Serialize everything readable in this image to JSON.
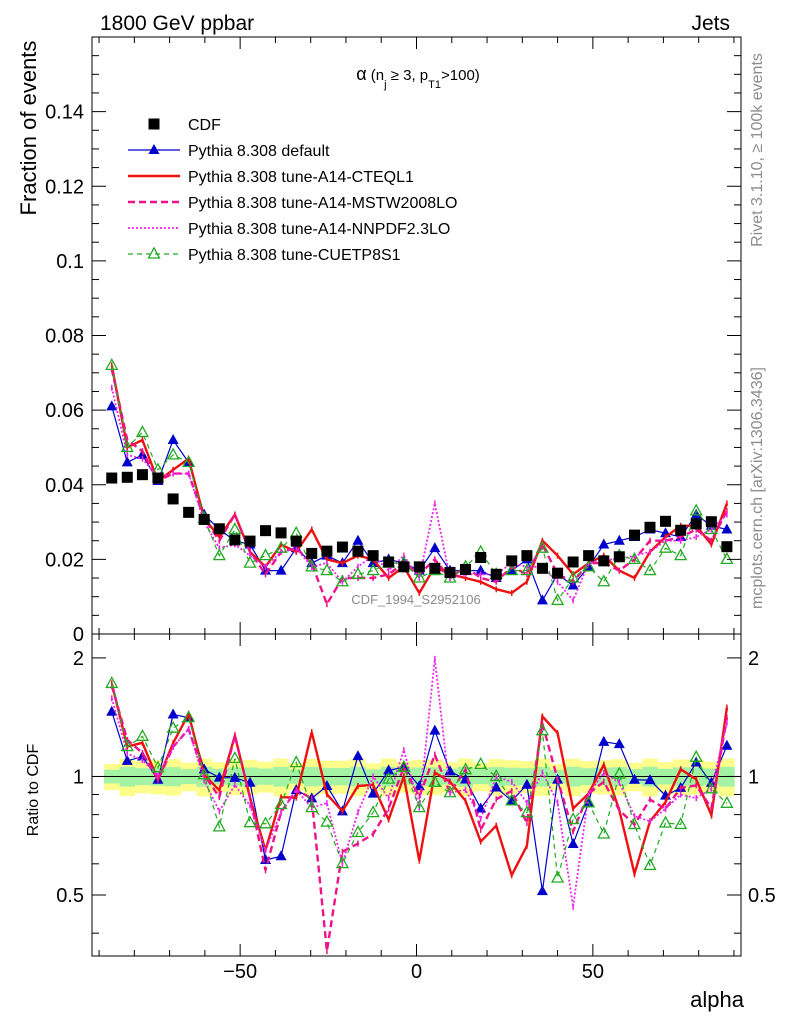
{
  "header": {
    "left": "1800 GeV ppbar",
    "right": "Jets"
  },
  "side_labels": {
    "rivet": "Rivet 3.1.10, ≥ 100k events",
    "mcplots": "mcplots.cern.ch [arXiv:1306.3436]"
  },
  "watermark": "CDF_1994_S2952106",
  "chart_data": {
    "type": "line",
    "title": {
      "alpha": "α",
      "open": " (n",
      "n_sub": "j",
      "mid": " ≥ 3, p",
      "pt_sub": "T1",
      "close": ">100)"
    },
    "xlabel": "alpha",
    "ylabel": "Fraction of events",
    "ratio_ylabel": "Ratio to CDF",
    "xlim": [
      -92,
      92
    ],
    "ylim": [
      0,
      0.16
    ],
    "ratio_ylim": [
      0.35,
      2.3
    ],
    "x_major_ticks": [
      -50,
      0,
      50
    ],
    "x_tick_labels": [
      "−50",
      "0",
      "50"
    ],
    "y_major_ticks": [
      0,
      0.02,
      0.04,
      0.06,
      0.08,
      0.1,
      0.12,
      0.14
    ],
    "y_tick_labels": [
      "0",
      "0.02",
      "0.04",
      "0.06",
      "0.08",
      "0.1",
      "0.12",
      "0.14"
    ],
    "ratio_major_ticks": [
      0.5,
      1,
      2
    ],
    "ratio_tick_labels": [
      "0.5",
      "1",
      "2"
    ],
    "x": [
      -86.4,
      -82.0,
      -77.7,
      -73.3,
      -69.0,
      -64.6,
      -60.2,
      -55.9,
      -51.5,
      -47.2,
      -42.8,
      -38.4,
      -34.1,
      -29.7,
      -25.4,
      -21.0,
      -16.6,
      -12.3,
      -7.9,
      -3.6,
      0.8,
      5.2,
      9.5,
      13.9,
      18.2,
      22.6,
      27.0,
      31.3,
      35.7,
      40.0,
      44.4,
      48.8,
      53.1,
      57.5,
      61.8,
      66.2,
      70.6,
      74.9,
      79.3,
      83.6,
      88.0
    ],
    "series": [
      {
        "name": "CDF",
        "color": "#000000",
        "values": [
          0.0418,
          0.042,
          0.0427,
          0.0418,
          0.0362,
          0.0326,
          0.0307,
          0.0282,
          0.0252,
          0.0249,
          0.0277,
          0.0271,
          0.0249,
          0.0216,
          0.0222,
          0.0233,
          0.0222,
          0.021,
          0.0193,
          0.018,
          0.018,
          0.0176,
          0.0165,
          0.0173,
          0.0205,
          0.016,
          0.0196,
          0.021,
          0.0176,
          0.0163,
          0.0193,
          0.021,
          0.0196,
          0.0207,
          0.0265,
          0.0286,
          0.0302,
          0.0278,
          0.0295,
          0.0301,
          0.0234
        ]
      },
      {
        "name": "Pythia 8.308 default",
        "color": "#0000cc",
        "values": [
          0.061,
          0.046,
          0.048,
          0.041,
          0.052,
          0.046,
          0.032,
          0.028,
          0.025,
          0.024,
          0.017,
          0.017,
          0.023,
          0.019,
          0.021,
          0.019,
          0.025,
          0.019,
          0.02,
          0.019,
          0.017,
          0.023,
          0.017,
          0.017,
          0.017,
          0.015,
          0.017,
          0.02,
          0.009,
          0.016,
          0.013,
          0.018,
          0.024,
          0.025,
          0.026,
          0.028,
          0.027,
          0.026,
          0.032,
          0.029,
          0.028
        ]
      },
      {
        "name": "Pythia 8.308 tune-A14-CTEQL1",
        "color": "#ee1111",
        "values": [
          0.072,
          0.05,
          0.052,
          0.041,
          0.044,
          0.047,
          0.031,
          0.026,
          0.032,
          0.022,
          0.018,
          0.024,
          0.022,
          0.028,
          0.02,
          0.019,
          0.021,
          0.02,
          0.015,
          0.018,
          0.011,
          0.018,
          0.016,
          0.015,
          0.014,
          0.012,
          0.011,
          0.014,
          0.025,
          0.021,
          0.016,
          0.019,
          0.021,
          0.017,
          0.015,
          0.022,
          0.026,
          0.029,
          0.029,
          0.024,
          0.035
        ]
      },
      {
        "name": "Pythia 8.308 tune-A14-MSTW2008LO",
        "color": "#ee1188",
        "values": [
          0.071,
          0.052,
          0.049,
          0.041,
          0.043,
          0.043,
          0.031,
          0.025,
          0.032,
          0.022,
          0.016,
          0.022,
          0.023,
          0.019,
          0.008,
          0.015,
          0.015,
          0.015,
          0.016,
          0.019,
          0.016,
          0.02,
          0.015,
          0.018,
          0.015,
          0.014,
          0.018,
          0.016,
          0.024,
          0.016,
          0.014,
          0.019,
          0.019,
          0.017,
          0.02,
          0.025,
          0.025,
          0.026,
          0.028,
          0.025,
          0.033
        ]
      },
      {
        "name": "Pythia 8.308 tune-A14-NNPDF2.3LO",
        "color": "#ee22ee",
        "values": [
          0.066,
          0.048,
          0.047,
          0.042,
          0.043,
          0.043,
          0.03,
          0.023,
          0.024,
          0.021,
          0.018,
          0.022,
          0.023,
          0.018,
          0.019,
          0.014,
          0.018,
          0.021,
          0.017,
          0.021,
          0.015,
          0.035,
          0.015,
          0.016,
          0.016,
          0.016,
          0.019,
          0.018,
          0.018,
          0.014,
          0.009,
          0.019,
          0.02,
          0.02,
          0.021,
          0.022,
          0.025,
          0.025,
          0.026,
          0.028,
          0.032
        ]
      },
      {
        "name": "Pythia 8.308 tune-CUETP8S1",
        "color": "#22aa22",
        "values": [
          0.072,
          0.05,
          0.054,
          0.044,
          0.048,
          0.046,
          0.031,
          0.021,
          0.028,
          0.019,
          0.021,
          0.023,
          0.027,
          0.018,
          0.017,
          0.014,
          0.016,
          0.017,
          0.019,
          0.019,
          0.015,
          0.017,
          0.015,
          0.018,
          0.022,
          0.016,
          0.017,
          0.017,
          0.023,
          0.009,
          0.015,
          0.018,
          0.014,
          0.021,
          0.02,
          0.017,
          0.023,
          0.021,
          0.033,
          0.028,
          0.02
        ]
      }
    ]
  }
}
